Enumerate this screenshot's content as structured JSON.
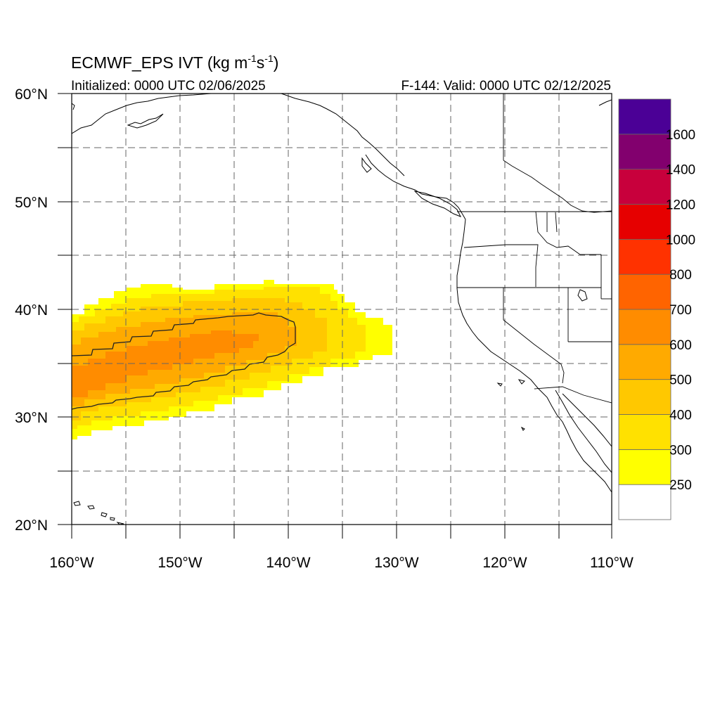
{
  "map": {
    "title_main": "ECMWF_EPS IVT (kg m",
    "title_exp1": "-1",
    "title_mid": "s",
    "title_exp2": "-1",
    "title_end": ")",
    "init_label": "Initialized: 0000 UTC 02/06/2025",
    "valid_label": "F-144: Valid: 0000 UTC 02/12/2025",
    "lon_ticks": [
      "160°W",
      "150°W",
      "140°W",
      "130°W",
      "120°W",
      "110°W"
    ],
    "lat_ticks": [
      "60°N",
      "50°N",
      "40°N",
      "30°N",
      "20°N"
    ],
    "extent": {
      "lon_min": -160,
      "lon_max": -110,
      "lat_min": 20,
      "lat_max": 60
    },
    "grid": "dashed every 5 degrees"
  },
  "colorbar": {
    "levels": [
      "250",
      "300",
      "400",
      "500",
      "600",
      "700",
      "800",
      "1000",
      "1200",
      "1400",
      "1600"
    ],
    "colors": [
      "#ffffff",
      "#ffff00",
      "#ffe100",
      "#ffc800",
      "#ffaa00",
      "#ff8c00",
      "#ff6400",
      "#ff3200",
      "#e60000",
      "#c8003c",
      "#82006e",
      "#4b0096"
    ]
  },
  "contour_level": "600"
}
